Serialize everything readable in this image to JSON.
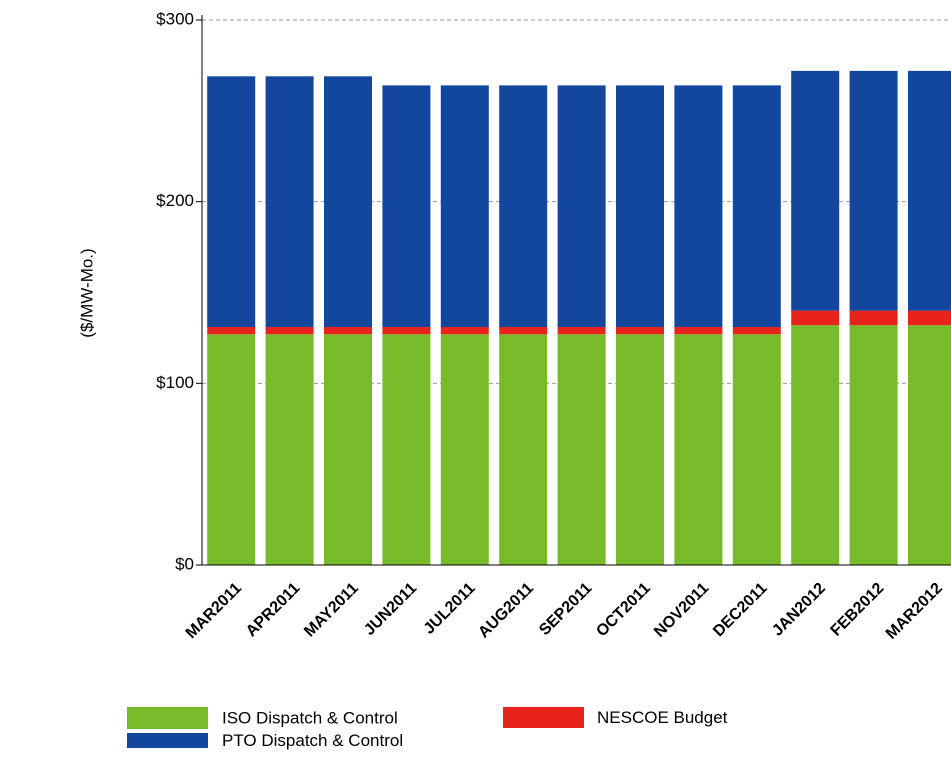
{
  "chart_data": {
    "type": "stacked_bar",
    "y_label": "($/MW-Mo.)",
    "categories": [
      "MAR2011",
      "APR2011",
      "MAY2011",
      "JUN2011",
      "JUL2011",
      "AUG2011",
      "SEP2011",
      "OCT2011",
      "NOV2011",
      "DEC2011",
      "JAN2012",
      "FEB2012",
      "MAR2012"
    ],
    "series": [
      {
        "name": "ISO Dispatch & Control",
        "color": "#77bb2a",
        "values": [
          127,
          127,
          127,
          127,
          127,
          127,
          127,
          127,
          127,
          127,
          132,
          132,
          132
        ]
      },
      {
        "name": "NESCOE Budget",
        "color": "#e8231c",
        "values": [
          4,
          4,
          4,
          4,
          4,
          4,
          4,
          4,
          4,
          4,
          8,
          8,
          8
        ]
      },
      {
        "name": "PTO Dispatch & Control",
        "color": "#12479d",
        "values": [
          138,
          138,
          138,
          133,
          133,
          133,
          133,
          133,
          133,
          133,
          132,
          132,
          132
        ]
      }
    ],
    "ylim": [
      0,
      300
    ],
    "yticks": [
      {
        "value": 0,
        "label": "$0"
      },
      {
        "value": 100,
        "label": "$100"
      },
      {
        "value": 200,
        "label": "$200"
      },
      {
        "value": 300,
        "label": "$300"
      }
    ],
    "grid": true
  }
}
